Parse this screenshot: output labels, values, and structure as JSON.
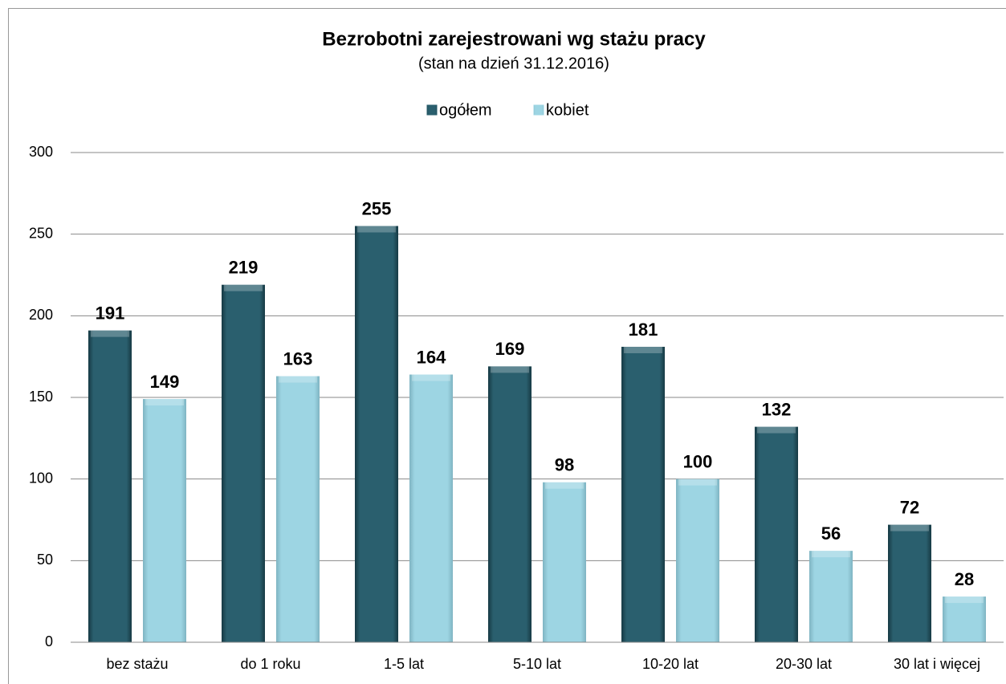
{
  "chart_data": {
    "type": "bar",
    "title": "Bezrobotni zarejestrowani wg stażu pracy",
    "subtitle": "(stan na dzień 31.12.2016)",
    "categories": [
      "bez stażu",
      "do 1 roku",
      "1-5 lat",
      "5-10 lat",
      "10-20 lat",
      "20-30 lat",
      "30 lat i więcej"
    ],
    "series": [
      {
        "name": "ogółem",
        "color": "#2a5f6e",
        "values": [
          191,
          219,
          255,
          169,
          181,
          132,
          72
        ]
      },
      {
        "name": "kobiet",
        "color": "#9dd5e3",
        "values": [
          149,
          163,
          164,
          98,
          100,
          56,
          28
        ]
      }
    ],
    "ylim": [
      0,
      300
    ],
    "yticks": [
      0,
      50,
      100,
      150,
      200,
      250,
      300
    ],
    "grid": true,
    "legend": "top"
  }
}
